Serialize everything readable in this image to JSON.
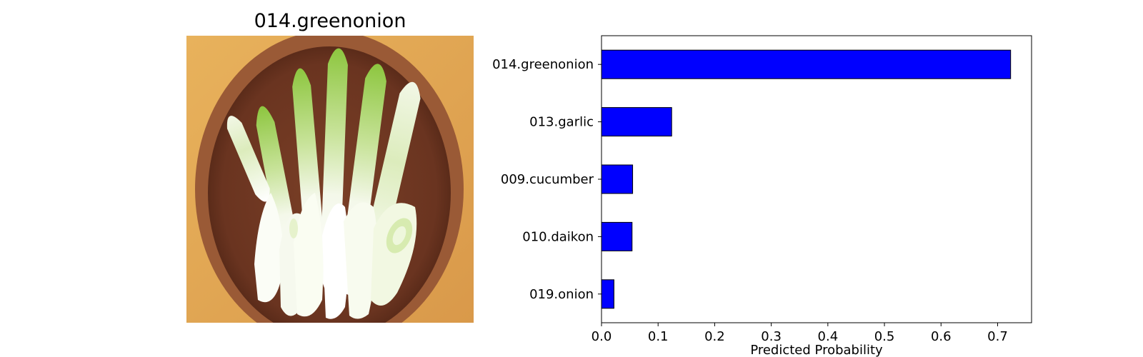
{
  "image_panel": {
    "title": "014.greenonion",
    "picture": "green onion pieces in a wooden bowl"
  },
  "chart_data": {
    "type": "bar",
    "orientation": "horizontal",
    "categories": [
      "014.greenonion",
      "013.garlic",
      "009.cucumber",
      "010.daikon",
      "019.onion"
    ],
    "values": [
      0.723,
      0.124,
      0.055,
      0.054,
      0.022
    ],
    "xlabel": "Predicted Probability",
    "ylabel": "",
    "xlim": [
      0,
      0.76
    ],
    "xticks": [
      0.0,
      0.1,
      0.2,
      0.3,
      0.4,
      0.5,
      0.6,
      0.7
    ],
    "xtick_labels": [
      "0.0",
      "0.1",
      "0.2",
      "0.3",
      "0.4",
      "0.5",
      "0.6",
      "0.7"
    ],
    "bar_color": "#0000ff",
    "bar_edge_color": "#000000",
    "grid": false,
    "legend": "none"
  }
}
